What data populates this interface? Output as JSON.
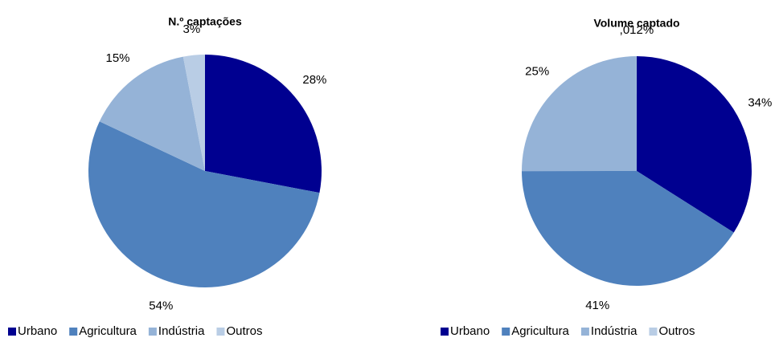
{
  "chart_data": [
    {
      "type": "pie",
      "title": "N.º captações",
      "categories": [
        "Urbano",
        "Agricultura",
        "Indústria",
        "Outros"
      ],
      "values": [
        28,
        54,
        15,
        3
      ],
      "value_labels": [
        "28%",
        "54%",
        "15%",
        "3%"
      ],
      "colors": [
        "#000090",
        "#4f81bd",
        "#95b3d7",
        "#b9cde5"
      ],
      "legend": "bottom"
    },
    {
      "type": "pie",
      "title": "Volume captado",
      "categories": [
        "Urbano",
        "Agricultura",
        "Indústria",
        "Outros"
      ],
      "values": [
        34,
        41,
        25,
        0.012
      ],
      "value_labels": [
        "34%",
        "41%",
        "25%",
        ",012%"
      ],
      "colors": [
        "#000090",
        "#4f81bd",
        "#95b3d7",
        "#b9cde5"
      ],
      "legend": "bottom"
    }
  ]
}
